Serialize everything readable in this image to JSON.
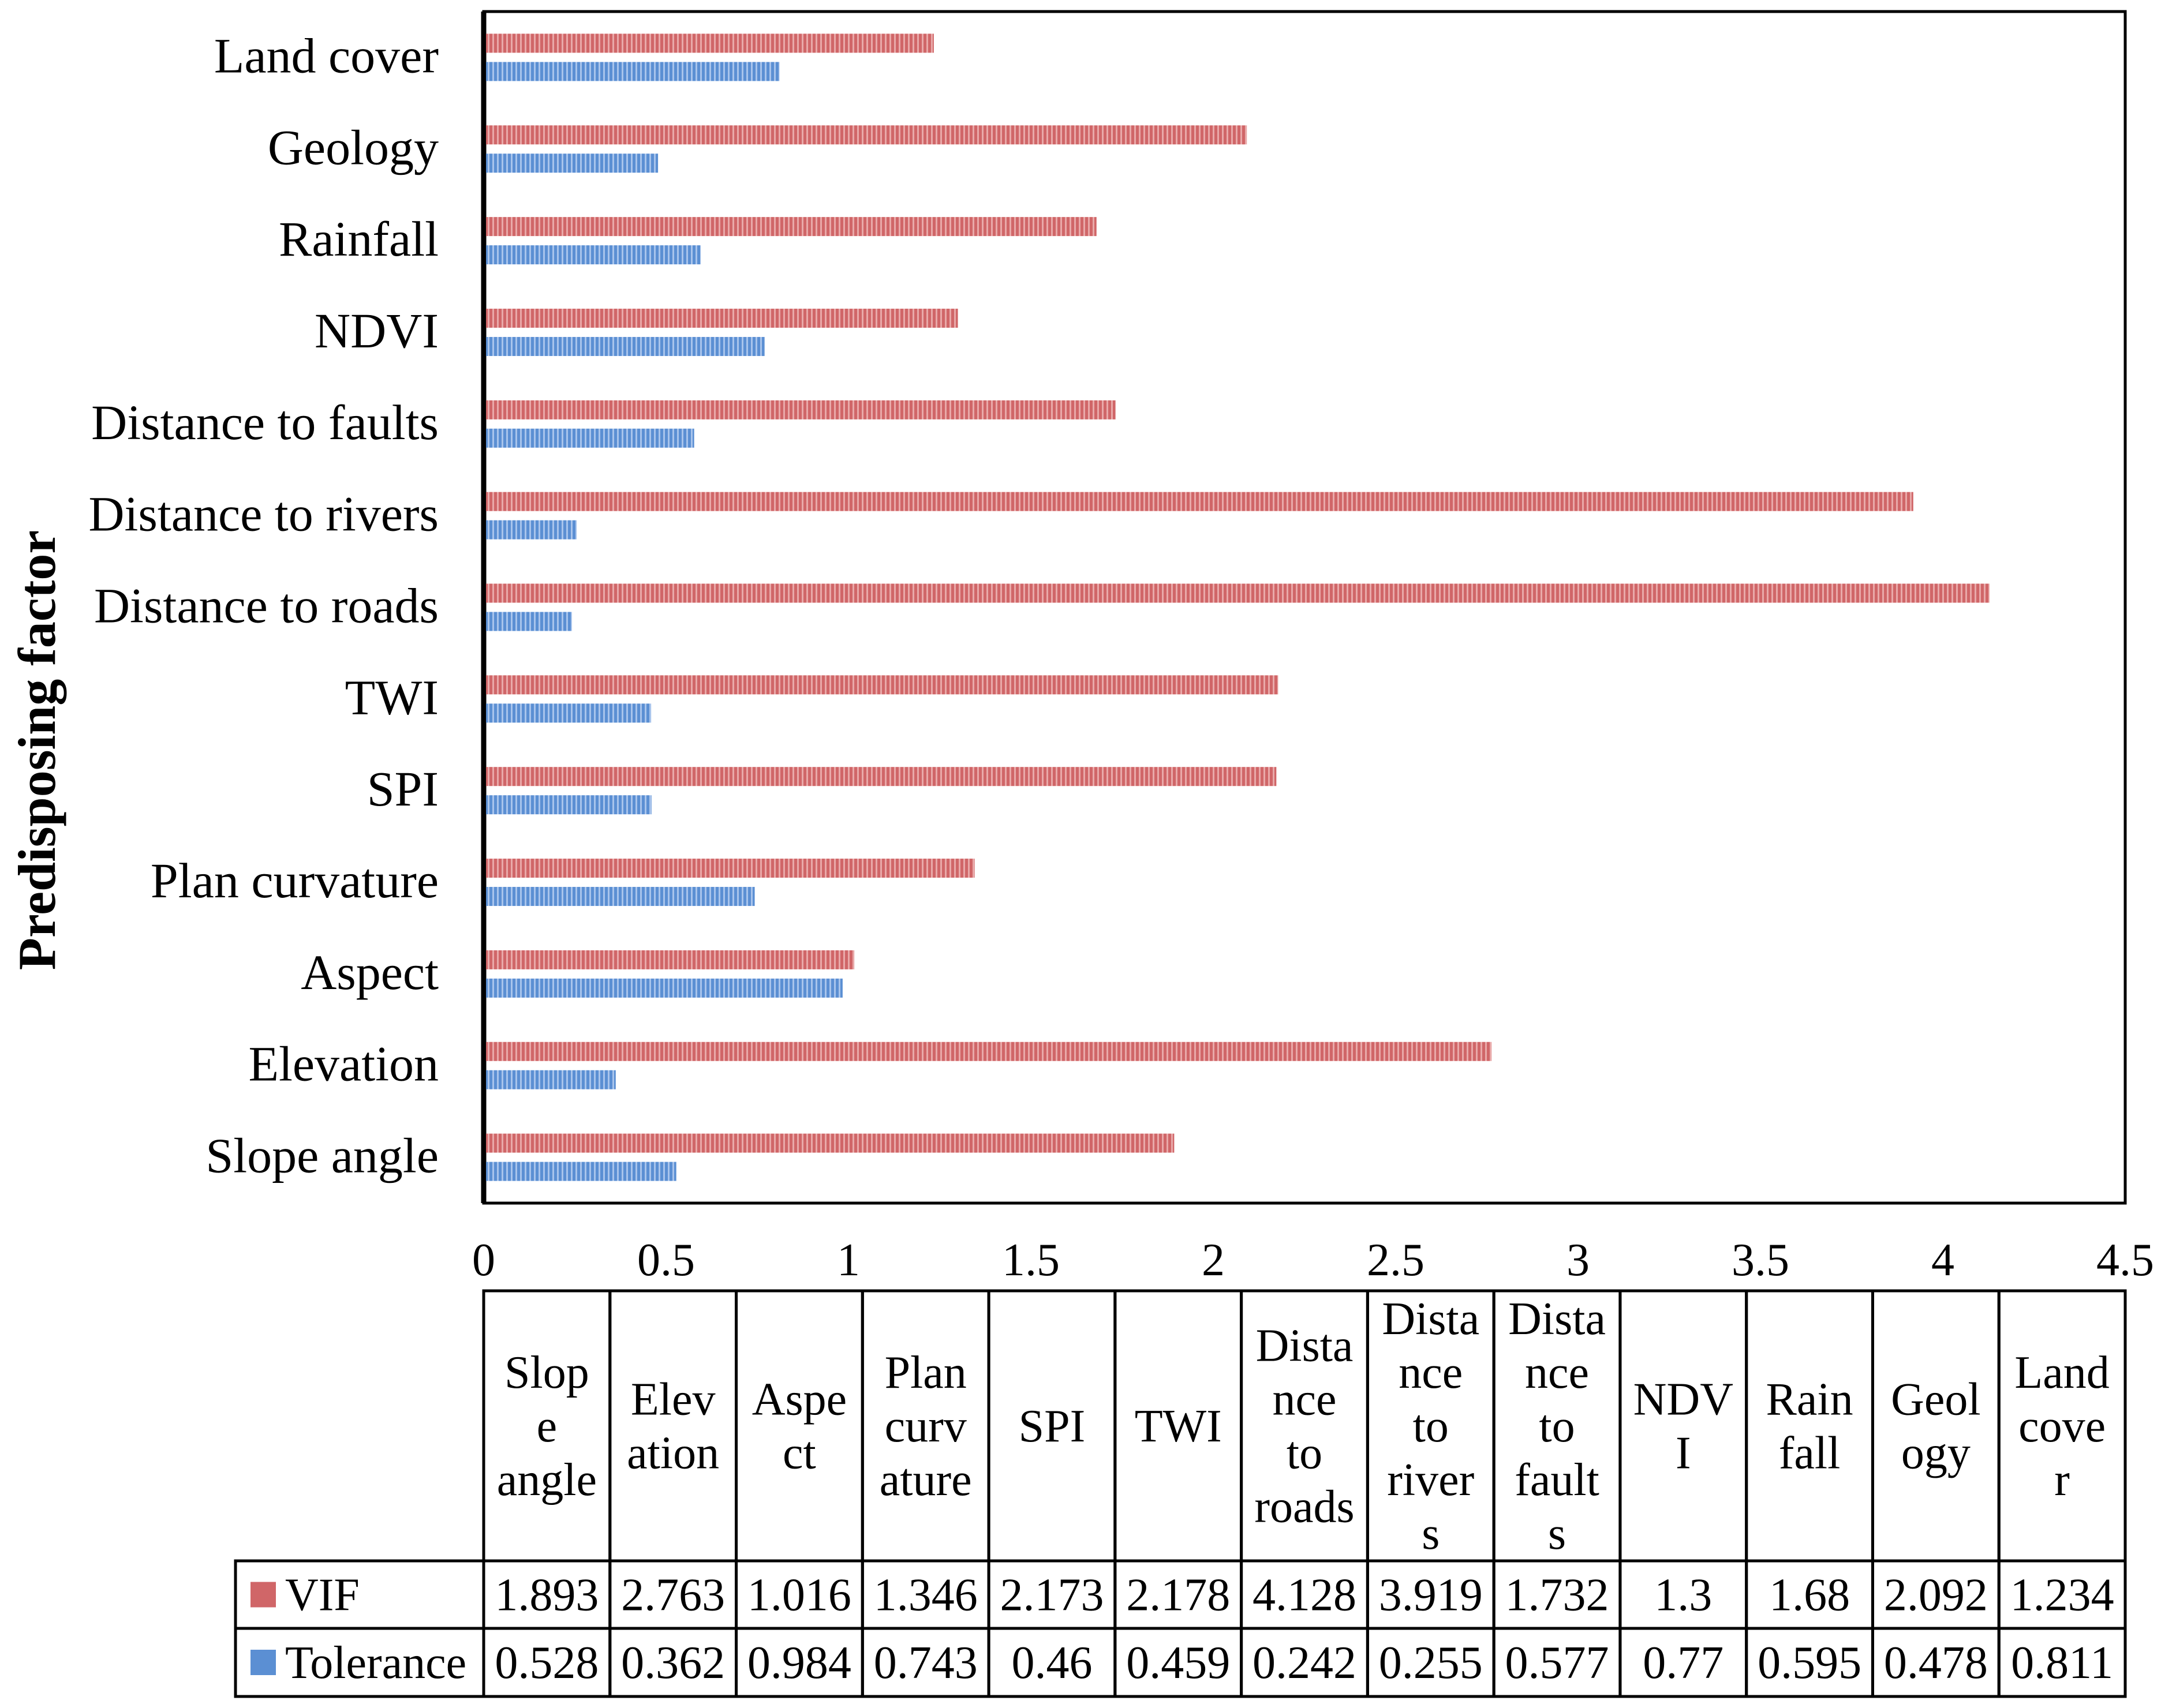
{
  "chart_data": {
    "type": "bar",
    "orientation": "horizontal",
    "categories": [
      "Slope angle",
      "Elevation",
      "Aspect",
      "Plan curvature",
      "SPI",
      "TWI",
      "Distance to roads",
      "Distance to rivers",
      "Distance to faults",
      "NDVI",
      "Rainfall",
      "Geology",
      "Land cover"
    ],
    "series": [
      {
        "name": "VIF",
        "color": "#d06668",
        "values": [
          1.893,
          2.763,
          1.016,
          1.346,
          2.173,
          2.178,
          4.128,
          3.919,
          1.732,
          1.3,
          1.68,
          2.092,
          1.234
        ]
      },
      {
        "name": "Tolerance",
        "color": "#5b8fd3",
        "values": [
          0.528,
          0.362,
          0.984,
          0.743,
          0.46,
          0.459,
          0.242,
          0.255,
          0.577,
          0.77,
          0.595,
          0.478,
          0.811
        ]
      }
    ],
    "ylabel": "Predisposing factor",
    "xlabel": "",
    "xlim": [
      0,
      4.5
    ],
    "xticks": [
      "0",
      "0.5",
      "1",
      "1.5",
      "2",
      "2.5",
      "3",
      "3.5",
      "4",
      "4.5"
    ],
    "table": {
      "column_headers": [
        [
          "Slop",
          "e",
          "angle"
        ],
        [
          "Elev",
          "ation"
        ],
        [
          "Aspe",
          "ct"
        ],
        [
          "Plan",
          "curv",
          "ature"
        ],
        [
          "SPI"
        ],
        [
          "TWI"
        ],
        [
          "Dista",
          "nce",
          "to",
          "roads"
        ],
        [
          "Dista",
          "nce",
          "to",
          "river",
          "s"
        ],
        [
          "Dista",
          "nce",
          "to",
          "fault",
          "s"
        ],
        [
          "NDV",
          "I"
        ],
        [
          "Rain",
          "fall"
        ],
        [
          "Geol",
          "ogy"
        ],
        [
          "Land",
          "cove",
          "r"
        ]
      ],
      "rows": [
        {
          "label": "VIF",
          "cells": [
            "1.893",
            "2.763",
            "1.016",
            "1.346",
            "2.173",
            "2.178",
            "4.128",
            "3.919",
            "1.732",
            "1.3",
            "1.68",
            "2.092",
            "1.234"
          ]
        },
        {
          "label": "Tolerance",
          "cells": [
            "0.528",
            "0.362",
            "0.984",
            "0.743",
            "0.46",
            "0.459",
            "0.242",
            "0.255",
            "0.577",
            "0.77",
            "0.595",
            "0.478",
            "0.811"
          ]
        }
      ]
    }
  }
}
